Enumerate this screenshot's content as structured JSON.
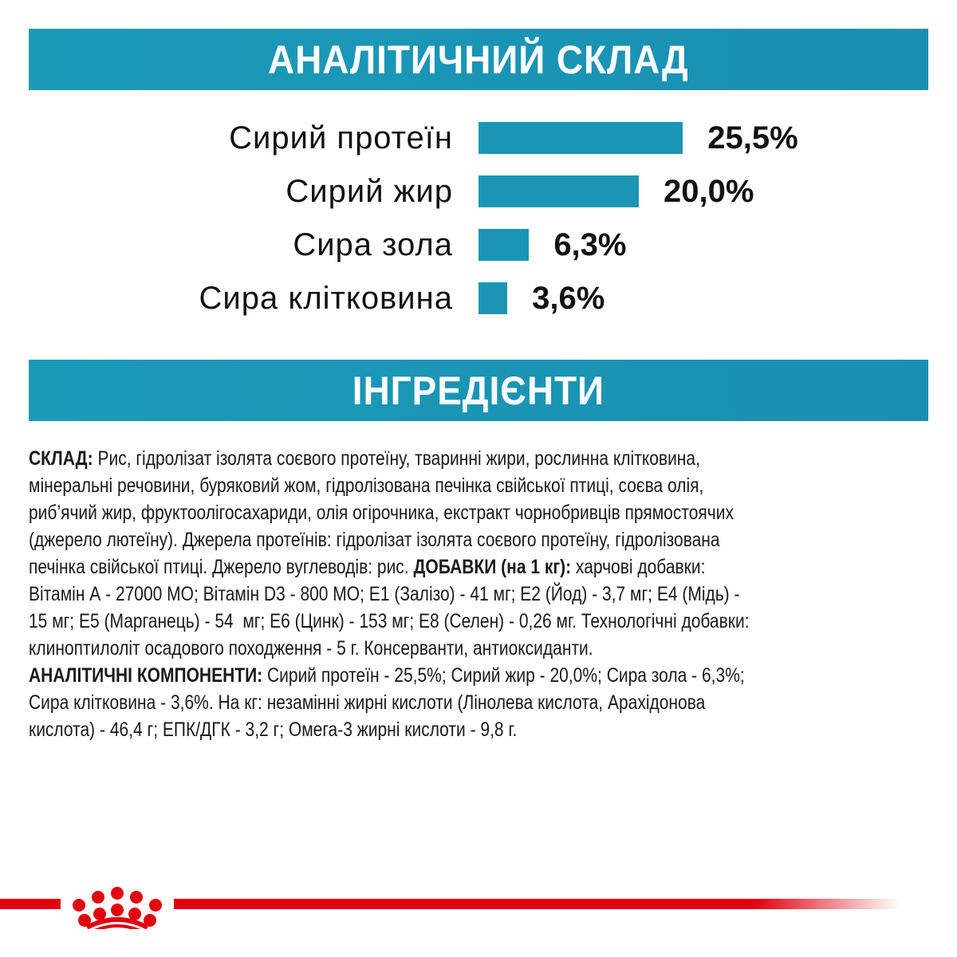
{
  "analysis": {
    "title": "АНАЛІТИЧНИЙ СКЛАД",
    "accent": "#1a95b5",
    "items": [
      {
        "label": "Сирий протеїн",
        "value": "25,5%",
        "percent": 25.5
      },
      {
        "label": "Сирий жир",
        "value": "20,0%",
        "percent": 20.0
      },
      {
        "label": "Сира зола",
        "value": "6,3%",
        "percent": 6.3
      },
      {
        "label": "Сира клітковина",
        "value": "3,6%",
        "percent": 3.6
      }
    ]
  },
  "ingredients": {
    "title": "ІНГРЕДІЄНТИ",
    "lines": [
      [
        {
          "b": "СКЛАД:"
        },
        {
          "t": " Рис, гідролізат ізолята соєвого протеїну, тваринні жири, рослинна клітковина,"
        }
      ],
      [
        {
          "t": "мінеральні речовини, буряковий жом, гідролізована печінка свійської птиці, соєва олія,"
        }
      ],
      [
        {
          "t": "риб’ячий жир, фруктоолігосахариди, олія огірочника, екстракт чорнобривців прямостоячих"
        }
      ],
      [
        {
          "t": "(джерело лютеїну). Джерела протеїнів: гідролізат ізолята соєвого протеїну, гідролізована"
        }
      ],
      [
        {
          "t": "печінка свійської птиці. Джерело вуглеводів: рис. "
        },
        {
          "b": "ДОБАВКИ (на 1 кг):"
        },
        {
          "t": " харчові добавки:"
        }
      ],
      [
        {
          "t": "Вітамін А - 27000 МО; Вітамін D3 - 800 МО; E1 (Залізо) - 41 мг; E2 (Йод) - 3,7 мг; E4 (Мідь) -"
        }
      ],
      [
        {
          "t": "15 мг; E5 (Марганець) - 54  мг; E6 (Цинк) - 153 мг; E8 (Селен) - 0,26 мг. Технологічні добавки:"
        }
      ],
      [
        {
          "t": "клиноптилоліт осадового походження - 5 г. Консерванти, антиоксиданти."
        }
      ],
      [
        {
          "b": "АНАЛІТИЧНІ КОМПОНЕНТИ:"
        },
        {
          "t": " Сирий протеїн - 25,5%; Сирий жир - 20,0%; Сира зола - 6,3%;"
        }
      ],
      [
        {
          "t": "Сира клітковина - 3,6%. На кг: незамінні жирні кислоти (Лінолева кислота, Арахідонова"
        }
      ],
      [
        {
          "t": "кислота) - 46,4 г; ЕПК/ДГК - 3,2 г; Омега-3 жирні кислоти - 9,8 г."
        }
      ]
    ]
  },
  "brand": {
    "logo": "royal-canin-crown",
    "color": "#e2000f"
  }
}
